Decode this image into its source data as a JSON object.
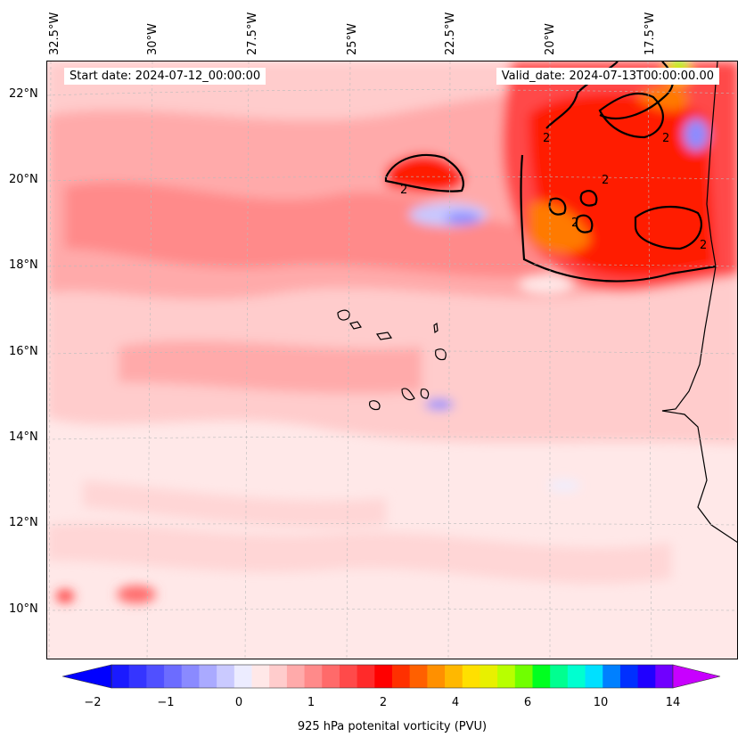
{
  "map": {
    "start_date": "Start date: 2024-07-12_00:00:00",
    "valid_date": "Valid_date: 2024-07-13T00:00:00.00",
    "contour_label": "2",
    "lon_labels": [
      "32.5°W",
      "30°W",
      "27.5°W",
      "25°W",
      "22.5°W",
      "20°W",
      "17.5°W"
    ],
    "lat_labels": [
      "22°N",
      "20°N",
      "18°N",
      "16°N",
      "14°N",
      "12°N",
      "10°N"
    ],
    "colorbar": {
      "title": "925 hPa potenital vorticity (PVU)",
      "ticks": [
        "−2",
        "−1",
        "0",
        "1",
        "2",
        "4",
        "6",
        "10",
        "14"
      ]
    },
    "colors": {
      "background": "#ffe8e8",
      "light_pink": "#ffcccc",
      "pink": "#ff9c9c",
      "red": "#ff3838",
      "deep_red": "#ff1a00",
      "orange": "#ff7a00",
      "yellow": "#ffd400",
      "green": "#6cff00",
      "light_blue": "#c8c8ff",
      "blue": "#8c8cff",
      "contour": "#000000"
    }
  }
}
